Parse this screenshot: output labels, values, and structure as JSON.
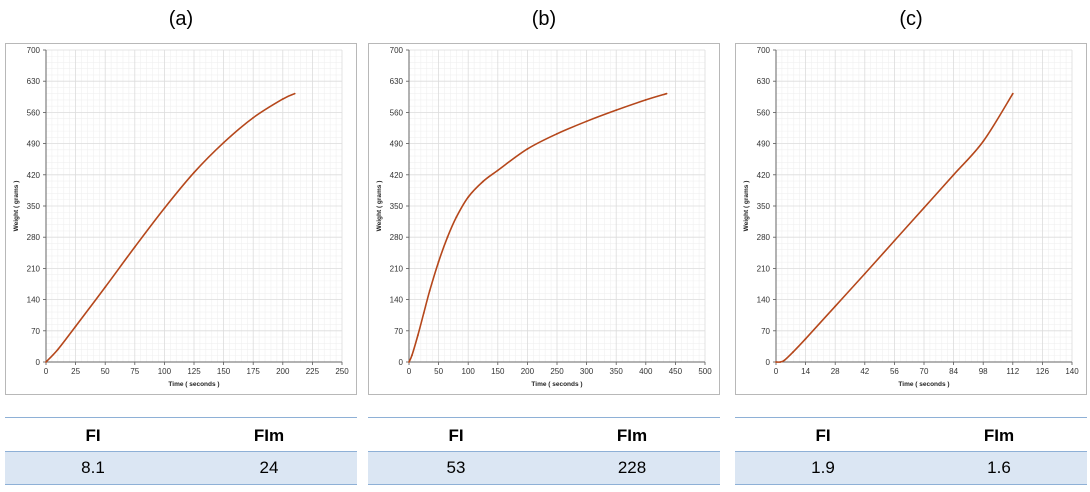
{
  "panels": [
    {
      "label": "(a)",
      "stats": {
        "headers": [
          "FI",
          "FIm"
        ],
        "values": [
          "8.1",
          "24"
        ]
      }
    },
    {
      "label": "(b)",
      "stats": {
        "headers": [
          "FI",
          "FIm"
        ],
        "values": [
          "53",
          "228"
        ]
      }
    },
    {
      "label": "(c)",
      "stats": {
        "headers": [
          "FI",
          "FIm"
        ],
        "values": [
          "1.9",
          "1.6"
        ]
      }
    }
  ],
  "chart_data": [
    {
      "type": "line",
      "title": "(a)",
      "xlabel": "Time ( seconds )",
      "ylabel": "Weight ( grams )",
      "xlim": [
        0,
        250
      ],
      "ylim": [
        0,
        700
      ],
      "xticks": [
        0,
        25,
        50,
        75,
        100,
        125,
        150,
        175,
        200,
        225,
        250
      ],
      "yticks": [
        0,
        70,
        140,
        210,
        280,
        350,
        420,
        490,
        560,
        630,
        700
      ],
      "grid": true,
      "line_color": "#b5471b",
      "series": [
        {
          "x": [
            0,
            10,
            25,
            50,
            75,
            100,
            125,
            150,
            175,
            200,
            210
          ],
          "y": [
            0,
            28,
            80,
            168,
            258,
            345,
            425,
            492,
            548,
            590,
            602
          ]
        }
      ]
    },
    {
      "type": "line",
      "title": "(b)",
      "xlabel": "Time ( seconds )",
      "ylabel": "Weight ( grams )",
      "xlim": [
        0,
        500
      ],
      "ylim": [
        0,
        700
      ],
      "xticks": [
        0,
        50,
        100,
        150,
        200,
        250,
        300,
        350,
        400,
        450,
        500
      ],
      "yticks": [
        0,
        70,
        140,
        210,
        280,
        350,
        420,
        490,
        560,
        630,
        700
      ],
      "grid": true,
      "line_color": "#b5471b",
      "series": [
        {
          "x": [
            0,
            5,
            15,
            25,
            35,
            50,
            65,
            80,
            100,
            125,
            150,
            200,
            250,
            300,
            350,
            400,
            435
          ],
          "y": [
            0,
            15,
            60,
            110,
            160,
            225,
            280,
            325,
            370,
            405,
            430,
            478,
            512,
            540,
            565,
            588,
            602
          ]
        }
      ]
    },
    {
      "type": "line",
      "title": "(c)",
      "xlabel": "Time ( seconds )",
      "ylabel": "Weight ( grams )",
      "xlim": [
        0,
        140
      ],
      "ylim": [
        0,
        700
      ],
      "xticks": [
        0,
        14,
        28,
        42,
        56,
        70,
        84,
        98,
        112,
        126,
        140
      ],
      "yticks": [
        0,
        70,
        140,
        210,
        280,
        350,
        420,
        490,
        560,
        630,
        700
      ],
      "grid": true,
      "line_color": "#b5471b",
      "series": [
        {
          "x": [
            0,
            2,
            4,
            8,
            14,
            28,
            42,
            56,
            70,
            84,
            98,
            112
          ],
          "y": [
            0,
            0,
            4,
            22,
            52,
            125,
            198,
            272,
            346,
            420,
            495,
            602
          ]
        }
      ]
    }
  ]
}
